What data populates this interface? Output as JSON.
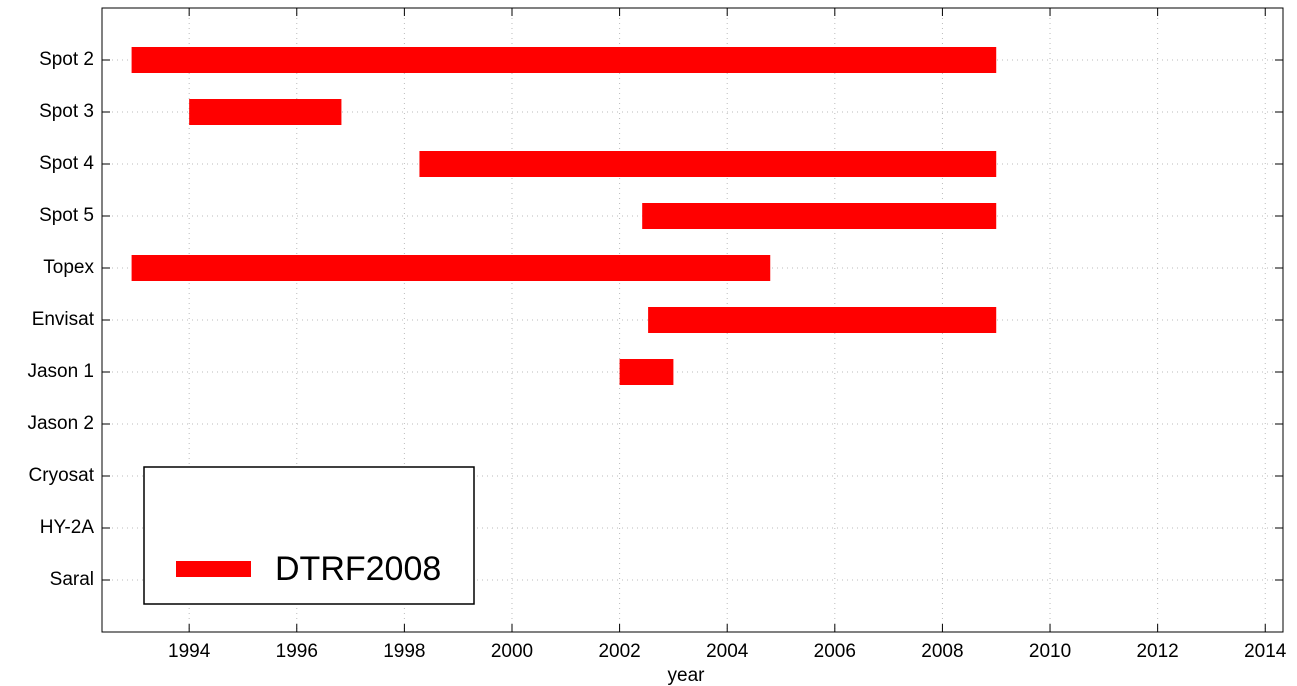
{
  "chart_data": {
    "type": "gantt",
    "categories": [
      "Spot 2",
      "Spot 3",
      "Spot 4",
      "Spot 5",
      "Topex",
      "Envisat",
      "Jason 1",
      "Jason 2",
      "Cryosat",
      "HY-2A",
      "Saral"
    ],
    "series": [
      {
        "name": "DTRF2008",
        "color": "#ff0000",
        "starts": [
          1992.93,
          1994.0,
          1998.28,
          2002.42,
          1992.93,
          2002.53,
          2002.0,
          null,
          null,
          null,
          null
        ],
        "ends": [
          2009.0,
          1996.83,
          2009.0,
          2009.0,
          2004.8,
          2009.0,
          2003.0,
          null,
          null,
          null,
          null
        ]
      }
    ],
    "xlabel": "year",
    "xlim": [
      1992.38,
      2014.33
    ],
    "xticks": [
      1994,
      1996,
      1998,
      2000,
      2002,
      2004,
      2006,
      2008,
      2010,
      2012,
      2014
    ],
    "grid": true,
    "legend": "lower left"
  }
}
